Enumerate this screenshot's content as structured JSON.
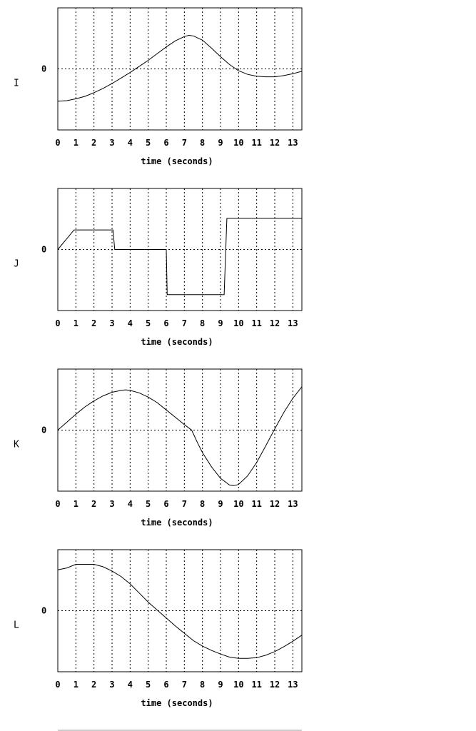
{
  "chart_data": [
    {
      "type": "line",
      "panel_label": "I",
      "xlabel": "time (seconds)",
      "ylabel": "",
      "y_tick_labels": [
        "0"
      ],
      "x_ticks": [
        0,
        1,
        2,
        3,
        4,
        5,
        6,
        7,
        8,
        9,
        10,
        11,
        12,
        13
      ],
      "xlim": [
        0,
        13.5
      ],
      "ylim": [
        -1,
        1
      ],
      "grid": "vertical dotted lines at each x tick; horizontal dotted line at y=0",
      "series": [
        {
          "x": [
            0,
            0.5,
            1,
            1.5,
            2,
            2.5,
            3,
            3.5,
            4,
            4.5,
            5,
            5.5,
            6,
            6.5,
            7,
            7.25,
            7.5,
            8,
            8.5,
            9,
            9.5,
            10,
            10.5,
            11,
            11.5,
            12,
            12.5,
            13,
            13.5
          ],
          "y": [
            -0.53,
            -0.52,
            -0.49,
            -0.45,
            -0.39,
            -0.32,
            -0.24,
            -0.15,
            -0.06,
            0.04,
            0.14,
            0.25,
            0.36,
            0.46,
            0.53,
            0.55,
            0.54,
            0.47,
            0.34,
            0.2,
            0.07,
            -0.03,
            -0.09,
            -0.12,
            -0.13,
            -0.13,
            -0.11,
            -0.08,
            -0.04
          ]
        }
      ]
    },
    {
      "type": "line",
      "panel_label": "J",
      "xlabel": "time (seconds)",
      "ylabel": "",
      "y_tick_labels": [
        "0"
      ],
      "x_ticks": [
        0,
        1,
        2,
        3,
        4,
        5,
        6,
        7,
        8,
        9,
        10,
        11,
        12,
        13
      ],
      "xlim": [
        0,
        13.5
      ],
      "ylim": [
        -1,
        1
      ],
      "grid": "vertical dotted lines at each x tick; horizontal dotted line at y=0",
      "series": [
        {
          "x": [
            0,
            0.9,
            3.05,
            3.15,
            6.0,
            6.05,
            9.2,
            9.35,
            13.5
          ],
          "y": [
            0,
            0.32,
            0.32,
            0,
            0,
            -0.74,
            -0.74,
            0.51,
            0.51
          ]
        }
      ]
    },
    {
      "type": "line",
      "panel_label": "K",
      "xlabel": "time (seconds)",
      "ylabel": "",
      "y_tick_labels": [
        "0"
      ],
      "x_ticks": [
        0,
        1,
        2,
        3,
        4,
        5,
        6,
        7,
        8,
        9,
        10,
        11,
        12,
        13
      ],
      "xlim": [
        0,
        13.5
      ],
      "ylim": [
        -1,
        1
      ],
      "grid": "vertical dotted lines at each x tick; horizontal dotted line at y=0",
      "series": [
        {
          "x": [
            0,
            0.5,
            1,
            1.5,
            2,
            2.5,
            3,
            3.5,
            3.75,
            4,
            4.5,
            5,
            5.5,
            6,
            6.5,
            7,
            7.4,
            7.75,
            8,
            8.5,
            9,
            9.5,
            9.75,
            10,
            10.5,
            11,
            11.5,
            12,
            12.5,
            13,
            13.5
          ],
          "y": [
            0,
            0.13,
            0.26,
            0.38,
            0.48,
            0.56,
            0.62,
            0.65,
            0.66,
            0.65,
            0.61,
            0.54,
            0.45,
            0.33,
            0.21,
            0.09,
            0,
            -0.22,
            -0.37,
            -0.6,
            -0.79,
            -0.9,
            -0.91,
            -0.89,
            -0.75,
            -0.53,
            -0.26,
            0.02,
            0.29,
            0.52,
            0.71
          ]
        }
      ]
    },
    {
      "type": "line",
      "panel_label": "L",
      "xlabel": "time (seconds)",
      "ylabel": "",
      "y_tick_labels": [
        "0"
      ],
      "x_ticks": [
        0,
        1,
        2,
        3,
        4,
        5,
        6,
        7,
        8,
        9,
        10,
        11,
        12,
        13
      ],
      "xlim": [
        0,
        13.5
      ],
      "ylim": [
        -1,
        1
      ],
      "grid": "vertical dotted lines at each x tick; horizontal dotted line at y=0",
      "series": [
        {
          "x": [
            0,
            0.5,
            1,
            1.5,
            2,
            2.5,
            3,
            3.5,
            4,
            4.5,
            5,
            5.5,
            6,
            6.5,
            7,
            7.5,
            8,
            8.5,
            9,
            9.5,
            10,
            10.5,
            11,
            11.5,
            12,
            12.5,
            13,
            13.5
          ],
          "y": [
            0.67,
            0.7,
            0.76,
            0.76,
            0.76,
            0.72,
            0.65,
            0.56,
            0.44,
            0.29,
            0.14,
            0.01,
            -0.12,
            -0.25,
            -0.37,
            -0.49,
            -0.58,
            -0.65,
            -0.71,
            -0.76,
            -0.78,
            -0.78,
            -0.77,
            -0.73,
            -0.67,
            -0.59,
            -0.5,
            -0.4
          ]
        }
      ]
    }
  ]
}
